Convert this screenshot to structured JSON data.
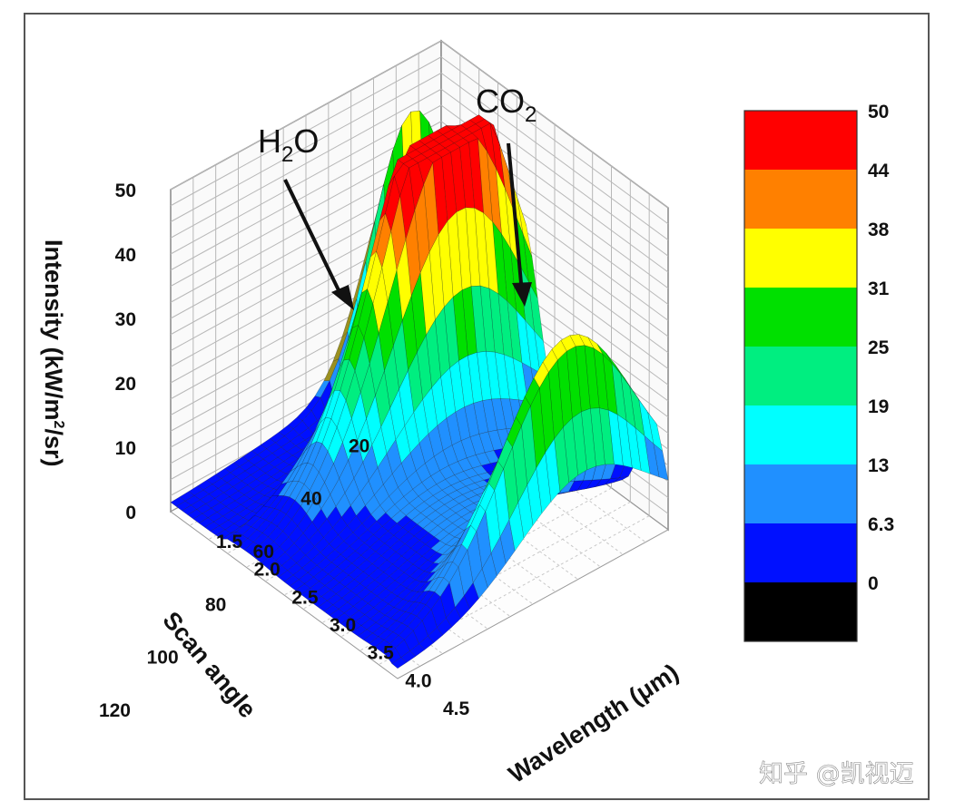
{
  "chart_data": {
    "type": "surface3d",
    "z_axis": {
      "label": "Intensity (kW/m",
      "label_sup": "2",
      "label_tail": "/sr)",
      "ticks": [
        "0",
        "10",
        "20",
        "30",
        "40",
        "50"
      ],
      "range": [
        0,
        50
      ]
    },
    "scan_axis": {
      "label": "Scan angle",
      "ticks": [
        "20",
        "40",
        "60",
        "80",
        "100",
        "120"
      ],
      "range": [
        0,
        120
      ]
    },
    "wavelength_axis": {
      "label": "Wavelength (μm)",
      "ticks": [
        "1.5",
        "2.0",
        "2.5",
        "3.0",
        "3.5",
        "4.0",
        "4.5"
      ],
      "range": [
        1.5,
        4.5
      ]
    },
    "annotations": [
      {
        "base": "H",
        "sub": "2",
        "tail": "O",
        "wavelength": 2.4,
        "scan_angle": 40,
        "intensity": 32
      },
      {
        "base": "CO",
        "sub": "2",
        "tail": "",
        "wavelength": 4.3,
        "scan_angle": 40,
        "intensity": 30
      }
    ],
    "colorbar": {
      "labels": [
        "50",
        "44",
        "38",
        "31",
        "25",
        "19",
        "13",
        "6.3",
        "0"
      ],
      "colors": [
        "#ff0000",
        "#ff8000",
        "#ffff00",
        "#00e000",
        "#00ee80",
        "#00ffff",
        "#2090ff",
        "#0010ff",
        "#000000"
      ]
    },
    "wall_color": "#9a9020",
    "surface": {
      "description_peaks": [
        {
          "wavelength": 2.6,
          "scan_angle": 30,
          "intensity": 31
        },
        {
          "wavelength": 2.5,
          "scan_angle": 35,
          "intensity": 30
        },
        {
          "wavelength": 4.3,
          "scan_angle": 35,
          "intensity": 30
        }
      ],
      "edge_wall_max_intensity": 43
    },
    "grid": true
  },
  "watermark": "知乎 @凯视迈"
}
